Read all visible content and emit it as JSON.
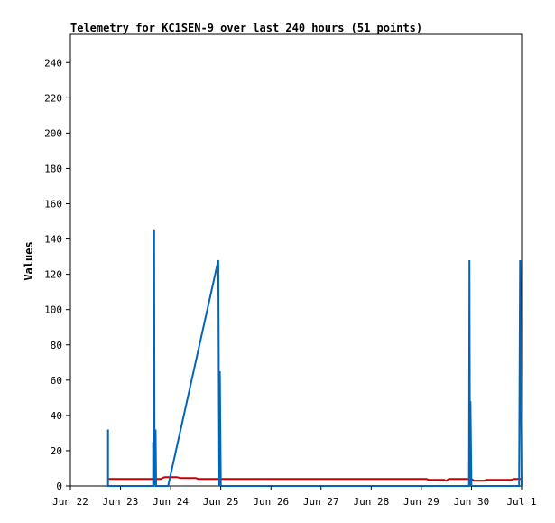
{
  "chart_data": {
    "type": "line",
    "title": "Telemetry for KC1SEN-9 over last 240 hours (51 points)",
    "ylabel": "Values",
    "xlabel": "",
    "ylim": [
      0,
      256
    ],
    "yticks": [
      0,
      20,
      40,
      60,
      80,
      100,
      120,
      140,
      160,
      180,
      200,
      220,
      240
    ],
    "xlim": [
      0,
      9
    ],
    "xticks": [
      {
        "x": 0,
        "label": "Jun 22"
      },
      {
        "x": 1,
        "label": "Jun 23"
      },
      {
        "x": 2,
        "label": "Jun 24"
      },
      {
        "x": 3,
        "label": "Jun 25"
      },
      {
        "x": 4,
        "label": "Jun 26"
      },
      {
        "x": 5,
        "label": "Jun 27"
      },
      {
        "x": 6,
        "label": "Jun 28"
      },
      {
        "x": 7,
        "label": "Jun 29"
      },
      {
        "x": 8,
        "label": "Jun 30"
      },
      {
        "x": 9,
        "label": "Jul 1"
      }
    ],
    "grid": false,
    "series": [
      {
        "color": "#cc0000",
        "points": [
          [
            0.75,
            4
          ],
          [
            1.8,
            4
          ],
          [
            1.88,
            5
          ],
          [
            2.12,
            5
          ],
          [
            2.2,
            4.5
          ],
          [
            2.5,
            4.5
          ],
          [
            2.55,
            4
          ],
          [
            7.1,
            4
          ],
          [
            7.15,
            3.5
          ],
          [
            7.45,
            3.5
          ],
          [
            7.5,
            3
          ],
          [
            7.55,
            4
          ],
          [
            8.0,
            4
          ],
          [
            8.05,
            3
          ],
          [
            8.25,
            3
          ],
          [
            8.3,
            3.5
          ],
          [
            8.8,
            3.5
          ],
          [
            8.85,
            4
          ],
          [
            9.0,
            4
          ]
        ]
      },
      {
        "color": "#0066bb",
        "points": [
          [
            0.75,
            0
          ],
          [
            0.75,
            32
          ],
          [
            0.75,
            0
          ],
          [
            1.65,
            0
          ],
          [
            1.65,
            25
          ],
          [
            1.66,
            0
          ],
          [
            1.67,
            145
          ],
          [
            1.68,
            0
          ],
          [
            1.7,
            32
          ],
          [
            1.71,
            0
          ],
          [
            1.95,
            0
          ],
          [
            2.95,
            128
          ],
          [
            2.97,
            0
          ],
          [
            2.98,
            65
          ],
          [
            3.0,
            0
          ],
          [
            7.95,
            0
          ],
          [
            7.96,
            128
          ],
          [
            7.97,
            0
          ],
          [
            7.98,
            48
          ],
          [
            8.0,
            0
          ],
          [
            8.95,
            0
          ],
          [
            8.97,
            128
          ],
          [
            9.0,
            0
          ]
        ]
      }
    ]
  }
}
